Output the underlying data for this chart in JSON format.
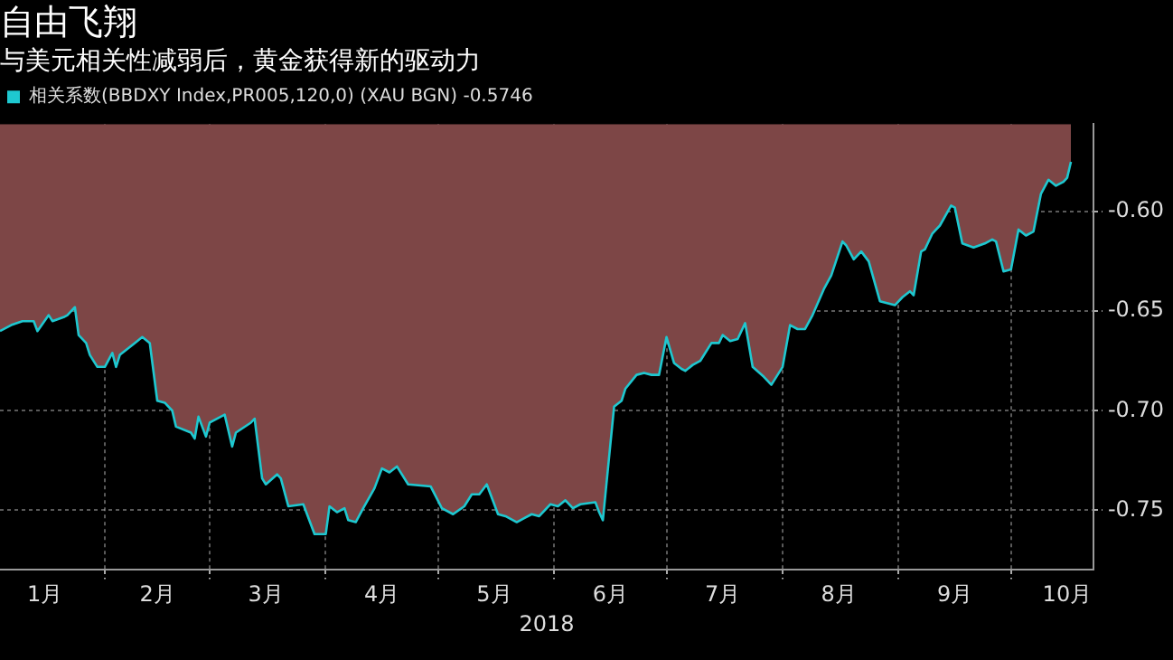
{
  "chart_data": {
    "type": "area",
    "title": "自由飞翔",
    "subtitle": "与美元相关性减弱后，黄金获得新的驱动力",
    "xlabel": "2018",
    "x": [
      "2018-01-04",
      "2018-01-07",
      "2018-01-10",
      "2018-01-13",
      "2018-01-14",
      "2018-01-17",
      "2018-01-18",
      "2018-01-21",
      "2018-01-22",
      "2018-01-24",
      "2018-01-25",
      "2018-01-27",
      "2018-01-28",
      "2018-01-30",
      "2018-02-01",
      "2018-02-03",
      "2018-02-04",
      "2018-02-05",
      "2018-02-09",
      "2018-02-11",
      "2018-02-13",
      "2018-02-15",
      "2018-02-17",
      "2018-02-19",
      "2018-02-20",
      "2018-02-24",
      "2018-02-25",
      "2018-02-26",
      "2018-02-28",
      "2018-03-01",
      "2018-03-05",
      "2018-03-07",
      "2018-03-08",
      "2018-03-12",
      "2018-03-13",
      "2018-03-15",
      "2018-03-16",
      "2018-03-19",
      "2018-03-20",
      "2018-03-22",
      "2018-03-26",
      "2018-03-27",
      "2018-03-29",
      "2018-04-01",
      "2018-04-02",
      "2018-04-04",
      "2018-04-06",
      "2018-04-07",
      "2018-04-09",
      "2018-04-11",
      "2018-04-14",
      "2018-04-16",
      "2018-04-18",
      "2018-04-20",
      "2018-04-23",
      "2018-04-29",
      "2018-05-02",
      "2018-05-05",
      "2018-05-08",
      "2018-05-10",
      "2018-05-12",
      "2018-05-14",
      "2018-05-15",
      "2018-05-17",
      "2018-05-19",
      "2018-05-22",
      "2018-05-24",
      "2018-05-26",
      "2018-05-28",
      "2018-05-31",
      "2018-06-02",
      "2018-06-04",
      "2018-06-06",
      "2018-06-08",
      "2018-06-12",
      "2018-06-13",
      "2018-06-14",
      "2018-06-17",
      "2018-06-19",
      "2018-06-20",
      "2018-06-23",
      "2018-06-25",
      "2018-06-27",
      "2018-06-29",
      "2018-07-01",
      "2018-07-03",
      "2018-07-05",
      "2018-07-06",
      "2018-07-08",
      "2018-07-10",
      "2018-07-13",
      "2018-07-15",
      "2018-07-16",
      "2018-07-18",
      "2018-07-20",
      "2018-07-22",
      "2018-07-24",
      "2018-07-27",
      "2018-07-29",
      "2018-08-01",
      "2018-08-03",
      "2018-08-05",
      "2018-08-07",
      "2018-08-09",
      "2018-08-12",
      "2018-08-14",
      "2018-08-17",
      "2018-08-18",
      "2018-08-20",
      "2018-08-22",
      "2018-08-24",
      "2018-08-27",
      "2018-08-31",
      "2018-09-02",
      "2018-09-04",
      "2018-09-05",
      "2018-09-07",
      "2018-09-08",
      "2018-09-10",
      "2018-09-12",
      "2018-09-15",
      "2018-09-16",
      "2018-09-18",
      "2018-09-21",
      "2018-09-24",
      "2018-09-26",
      "2018-09-27",
      "2018-09-29",
      "2018-10-01",
      "2018-10-03",
      "2018-10-05",
      "2018-10-07",
      "2018-10-09",
      "2018-10-11",
      "2018-10-13",
      "2018-10-15",
      "2018-10-16",
      "2018-10-17"
    ],
    "series": [
      {
        "color": "#7d4646",
        "values": [
          -0.66,
          -0.657,
          -0.655,
          -0.655,
          -0.66,
          -0.652,
          -0.655,
          -0.653,
          -0.652,
          -0.648,
          -0.662,
          -0.666,
          -0.672,
          -0.678,
          -0.678,
          -0.671,
          -0.678,
          -0.672,
          -0.666,
          -0.663,
          -0.666,
          -0.695,
          -0.696,
          -0.7,
          -0.708,
          -0.711,
          -0.714,
          -0.703,
          -0.713,
          -0.706,
          -0.702,
          -0.718,
          -0.711,
          -0.706,
          -0.704,
          -0.734,
          -0.737,
          -0.732,
          -0.734,
          -0.748,
          -0.747,
          -0.752,
          -0.762,
          -0.762,
          -0.748,
          -0.751,
          -0.749,
          -0.755,
          -0.756,
          -0.749,
          -0.739,
          -0.729,
          -0.731,
          -0.728,
          -0.737,
          -0.738,
          -0.749,
          -0.752,
          -0.748,
          -0.742,
          -0.742,
          -0.737,
          -0.742,
          -0.752,
          -0.753,
          -0.756,
          -0.754,
          -0.752,
          -0.753,
          -0.747,
          -0.748,
          -0.745,
          -0.749,
          -0.747,
          -0.746,
          -0.751,
          -0.755,
          -0.698,
          -0.695,
          -0.689,
          -0.682,
          -0.681,
          -0.682,
          -0.682,
          -0.663,
          -0.676,
          -0.679,
          -0.68,
          -0.677,
          -0.675,
          -0.666,
          -0.666,
          -0.662,
          -0.665,
          -0.664,
          -0.656,
          -0.678,
          -0.683,
          -0.687,
          -0.678,
          -0.657,
          -0.659,
          -0.659,
          -0.652,
          -0.639,
          -0.632,
          -0.615,
          -0.617,
          -0.624,
          -0.62,
          -0.625,
          -0.645,
          -0.647,
          -0.643,
          -0.64,
          -0.642,
          -0.62,
          -0.619,
          -0.611,
          -0.607,
          -0.597,
          -0.598,
          -0.616,
          -0.618,
          -0.616,
          -0.614,
          -0.615,
          -0.63,
          -0.629,
          -0.609,
          -0.612,
          -0.61,
          -0.591,
          -0.584,
          -0.587,
          -0.585,
          -0.583,
          -0.575
        ]
      },
      {
        "type": "line",
        "name": "相关系数(BBDXY Index,PR005,120,0) (XAU BGN) -0.5746",
        "color": "#1ec8d0",
        "values": [
          -0.66,
          -0.657,
          -0.655,
          -0.655,
          -0.66,
          -0.652,
          -0.655,
          -0.653,
          -0.652,
          -0.648,
          -0.662,
          -0.666,
          -0.672,
          -0.678,
          -0.678,
          -0.671,
          -0.678,
          -0.672,
          -0.666,
          -0.663,
          -0.666,
          -0.695,
          -0.696,
          -0.7,
          -0.708,
          -0.711,
          -0.714,
          -0.703,
          -0.713,
          -0.706,
          -0.702,
          -0.718,
          -0.711,
          -0.706,
          -0.704,
          -0.734,
          -0.737,
          -0.732,
          -0.734,
          -0.748,
          -0.747,
          -0.752,
          -0.762,
          -0.762,
          -0.748,
          -0.751,
          -0.749,
          -0.755,
          -0.756,
          -0.749,
          -0.739,
          -0.729,
          -0.731,
          -0.728,
          -0.737,
          -0.738,
          -0.749,
          -0.752,
          -0.748,
          -0.742,
          -0.742,
          -0.737,
          -0.742,
          -0.752,
          -0.753,
          -0.756,
          -0.754,
          -0.752,
          -0.753,
          -0.747,
          -0.748,
          -0.745,
          -0.749,
          -0.747,
          -0.746,
          -0.751,
          -0.755,
          -0.698,
          -0.695,
          -0.689,
          -0.682,
          -0.681,
          -0.682,
          -0.682,
          -0.663,
          -0.676,
          -0.679,
          -0.68,
          -0.677,
          -0.675,
          -0.666,
          -0.666,
          -0.662,
          -0.665,
          -0.664,
          -0.656,
          -0.678,
          -0.683,
          -0.687,
          -0.678,
          -0.657,
          -0.659,
          -0.659,
          -0.652,
          -0.639,
          -0.632,
          -0.615,
          -0.617,
          -0.624,
          -0.62,
          -0.625,
          -0.645,
          -0.647,
          -0.643,
          -0.64,
          -0.642,
          -0.62,
          -0.619,
          -0.611,
          -0.607,
          -0.597,
          -0.598,
          -0.616,
          -0.618,
          -0.616,
          -0.614,
          -0.615,
          -0.63,
          -0.629,
          -0.609,
          -0.612,
          -0.61,
          -0.591,
          -0.584,
          -0.587,
          -0.585,
          -0.583,
          -0.575
        ]
      }
    ],
    "xlim": [
      "2018-01-04",
      "2018-10-23"
    ],
    "xticks": [
      {
        "value": "2018-01-16",
        "label": "1月"
      },
      {
        "value": "2018-02-01",
        "label": null
      },
      {
        "value": "2018-02-15",
        "label": "2月"
      },
      {
        "value": "2018-03-01",
        "label": null
      },
      {
        "value": "2018-03-16",
        "label": "3月"
      },
      {
        "value": "2018-04-01",
        "label": null
      },
      {
        "value": "2018-04-16",
        "label": "4月"
      },
      {
        "value": "2018-05-01",
        "label": null
      },
      {
        "value": "2018-05-16",
        "label": "5月"
      },
      {
        "value": "2018-06-01",
        "label": null
      },
      {
        "value": "2018-06-16",
        "label": "6月"
      },
      {
        "value": "2018-07-01",
        "label": null
      },
      {
        "value": "2018-07-16",
        "label": "7月"
      },
      {
        "value": "2018-08-01",
        "label": null
      },
      {
        "value": "2018-08-16",
        "label": "8月"
      },
      {
        "value": "2018-09-01",
        "label": null
      },
      {
        "value": "2018-09-16",
        "label": "9月"
      },
      {
        "value": "2018-10-01",
        "label": null
      },
      {
        "value": "2018-10-16",
        "label": "10月"
      }
    ],
    "ylim": [
      -0.78,
      -0.556
    ],
    "yticks": [
      {
        "value": -0.75,
        "label": "-0.75"
      },
      {
        "value": -0.7,
        "label": "-0.70"
      },
      {
        "value": -0.65,
        "label": "-0.65"
      },
      {
        "value": -0.6,
        "label": "-0.60"
      }
    ],
    "grid": true,
    "legend": "top left"
  }
}
